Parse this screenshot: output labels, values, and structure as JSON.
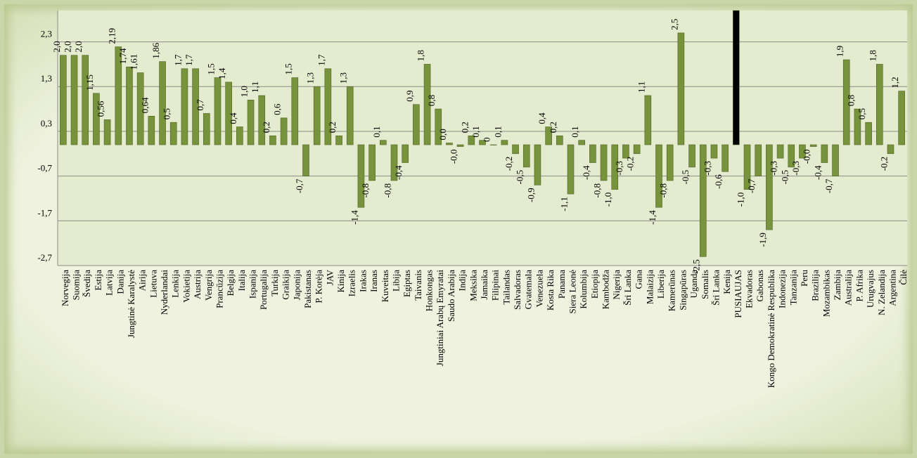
{
  "chart_data": {
    "type": "bar",
    "categories": [
      "Norvegija",
      "Suomija",
      "Švedija",
      "Estija",
      "Latvija",
      "Danija",
      "Jungtinė Karalystė",
      "Airija",
      "Lietuva",
      "Nyderlandai",
      "Lenkija",
      "Vokietija",
      "Austrija",
      "Vengrija",
      "Prancūzija",
      "Belgija",
      "Italija",
      "Ispanija",
      "Portugalija",
      "Turkija",
      "Graikija",
      "Japonija",
      "Pakistanas",
      "P. Korėja",
      "JAV",
      "Kinija",
      "Izraelis",
      "Irakas",
      "Iranas",
      "Kuveitas",
      "Libija",
      "Egiptas",
      "Taivanis",
      "Honkongas",
      "Jungtiniai Arabų Emyratai",
      "Saudo Arabija",
      "Indija",
      "Meksika",
      "Jamaika",
      "Filipinai",
      "Tailandas",
      "Salvadoras",
      "Gvatemala",
      "Venezuela",
      "Kosta Rika",
      "Panama",
      "Siera Leonė",
      "Kolumbija",
      "Etiopija",
      "Kambodža",
      "Nigerija",
      "Šri Lanka",
      "Gana",
      "Malaizija",
      "Liberija",
      "Kamerūnas",
      "Singapūras",
      "Uganda",
      "Somalis",
      "Šri Lanka",
      "Kenija",
      "PUSIAUJAS",
      "Ekvadoras",
      "Gabonas",
      "Kongo Demokratinė Respublika",
      "Indonezija",
      "Tanzanija",
      "Peru",
      "Brazilija",
      "Mozambikas",
      "Zambija",
      "Australija",
      "P. Afrika",
      "Urugvajus",
      "N. Zelandija",
      "Argentina",
      "Čilė"
    ],
    "values": [
      2.0,
      2.0,
      2.0,
      1.15,
      0.56,
      2.19,
      1.74,
      1.61,
      0.64,
      1.86,
      0.5,
      1.7,
      1.7,
      0.7,
      1.5,
      1.4,
      0.4,
      1.0,
      1.1,
      0.2,
      0.6,
      1.5,
      -0.7,
      1.3,
      1.7,
      0.2,
      1.3,
      -1.4,
      -0.8,
      0.1,
      -0.8,
      -0.4,
      0.9,
      1.8,
      0.8,
      0.04,
      -0.04,
      0.2,
      0.1,
      0,
      0.1,
      -0.2,
      -0.5,
      -0.9,
      0.4,
      0.2,
      -1.1,
      0.1,
      -0.4,
      -0.8,
      -1.0,
      -0.3,
      -0.2,
      1.1,
      -1.4,
      -0.8,
      2.5,
      -0.5,
      -2.5,
      -0.3,
      -0.6,
      3.0,
      -1.0,
      -0.7,
      -1.9,
      -0.3,
      -0.5,
      -0.3,
      -0.04,
      -0.4,
      -0.7,
      1.9,
      0.8,
      0.5,
      1.8,
      -0.2,
      1.2
    ],
    "value_labels": [
      "2,0",
      "2,0",
      "2,0",
      "1,15",
      "0,56",
      "2,19",
      "1,74",
      "1,61",
      "0,64",
      "1,86",
      "0,5",
      "1,7",
      "1,7",
      "0,7",
      "1,5",
      "1,4",
      "0,4",
      "1,0",
      "1,1",
      "0,2",
      "0,6",
      "1,5",
      "-0,7",
      "1,3",
      "1,7",
      "0,2",
      "1,3",
      "-1,4",
      "-0,8",
      "0,1",
      "-0,8",
      "-0,4",
      "0,9",
      "1,8",
      "0,8",
      "0,0",
      "-0,0",
      "0,2",
      "0,1",
      "0",
      "0,1",
      "-0,2",
      "-0,5",
      "-0,9",
      "0,4",
      "0,2",
      "-1,1",
      "0,1",
      "-0,4",
      "-0,8",
      "-1,0",
      "-0,3",
      "-0,2",
      "1,1",
      "-1,4",
      "-0,8",
      "2,5",
      "-0,5",
      "-2,5",
      "-0,3",
      "-0,6",
      null,
      "-1,0",
      "-0,7",
      "-1,9",
      "-0,3",
      "-0,5",
      "-0,3",
      "-0,0",
      "-0,4",
      "-0,7",
      "1,9",
      "0,8",
      "0,5",
      "1,8",
      "-0,2",
      "1,2"
    ],
    "colors": [
      "#77933c",
      "#77933c",
      "#77933c",
      "#77933c",
      "#77933c",
      "#77933c",
      "#77933c",
      "#77933c",
      "#77933c",
      "#77933c",
      "#77933c",
      "#77933c",
      "#77933c",
      "#77933c",
      "#77933c",
      "#77933c",
      "#77933c",
      "#77933c",
      "#77933c",
      "#77933c",
      "#77933c",
      "#77933c",
      "#77933c",
      "#77933c",
      "#77933c",
      "#77933c",
      "#77933c",
      "#77933c",
      "#77933c",
      "#77933c",
      "#77933c",
      "#77933c",
      "#77933c",
      "#77933c",
      "#77933c",
      "#77933c",
      "#77933c",
      "#77933c",
      "#77933c",
      "#77933c",
      "#77933c",
      "#77933c",
      "#77933c",
      "#77933c",
      "#77933c",
      "#77933c",
      "#77933c",
      "#77933c",
      "#77933c",
      "#77933c",
      "#77933c",
      "#77933c",
      "#77933c",
      "#77933c",
      "#77933c",
      "#77933c",
      "#77933c",
      "#77933c",
      "#77933c",
      "#77933c",
      "#77933c",
      "#000000",
      "#77933c",
      "#77933c",
      "#77933c",
      "#77933c",
      "#77933c",
      "#77933c",
      "#77933c",
      "#77933c",
      "#77933c",
      "#77933c",
      "#77933c",
      "#77933c",
      "#77933c",
      "#77933c",
      "#77933c"
    ],
    "ylim": [
      -2.7,
      3.0
    ],
    "yticks": [
      {
        "value": -2.7,
        "label": "-2,7"
      },
      {
        "value": -1.7,
        "label": "-1,7"
      },
      {
        "value": -0.7,
        "label": "-0,7"
      },
      {
        "value": 0.3,
        "label": "0,3"
      },
      {
        "value": 1.3,
        "label": "1,3"
      },
      {
        "value": 2.3,
        "label": "2,3"
      }
    ],
    "grid": true
  }
}
